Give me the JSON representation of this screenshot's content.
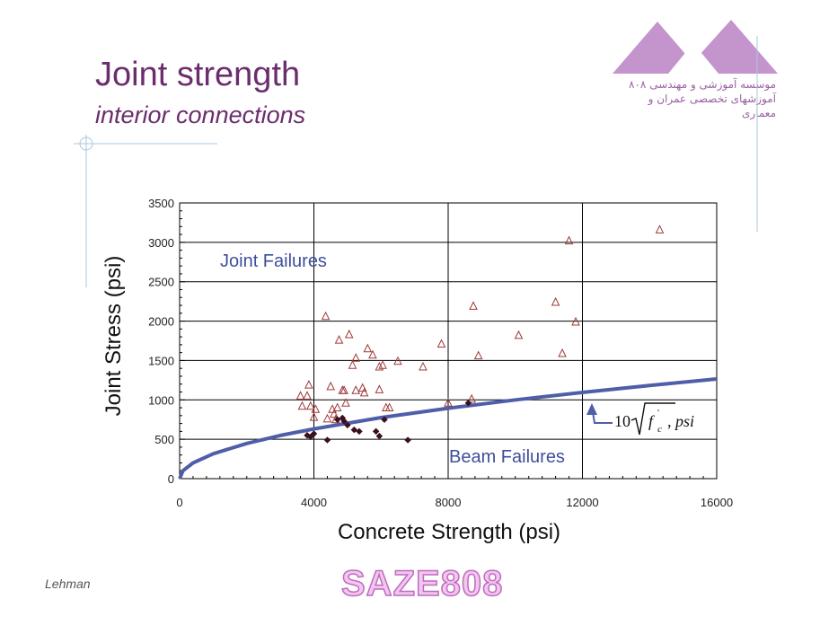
{
  "slide": {
    "title": "Joint strength",
    "subtitle": "interior connections",
    "author": "Lehman",
    "watermark": "SAZE808",
    "logo_lines": [
      "موسسه آموزشی و مهندسی ۸۰۸",
      "آموزشهای تخصصی عمران و معماری"
    ]
  },
  "colors": {
    "title": "#6b2d6e",
    "curve": "#4f5ea8",
    "joint_marker": "#9e3a3a",
    "beam_marker": "#3a1020",
    "logo": "#b07ab8"
  },
  "chart_data": {
    "type": "scatter",
    "xlabel": "Concrete Strength (psi)",
    "ylabel": "Joint Stress (psi)",
    "xlim": [
      0,
      16000
    ],
    "ylim": [
      0,
      3500
    ],
    "x_ticks": [
      0,
      4000,
      8000,
      12000,
      16000
    ],
    "y_ticks": [
      0,
      500,
      1000,
      1500,
      2000,
      2500,
      3000,
      3500
    ],
    "grid": true,
    "annotations": {
      "joint_failures": "Joint Failures",
      "beam_failures": "Beam Failures",
      "curve_label": {
        "coef": "10",
        "fc": "f",
        "sub": "c",
        "prime": "'",
        "unit": ", psi"
      }
    },
    "series": [
      {
        "marker": "open-triangle",
        "points": [
          [
            3600,
            1050
          ],
          [
            3650,
            920
          ],
          [
            3800,
            1050
          ],
          [
            3850,
            1190
          ],
          [
            3900,
            920
          ],
          [
            4000,
            780
          ],
          [
            4050,
            880
          ],
          [
            4350,
            2060
          ],
          [
            4400,
            760
          ],
          [
            4500,
            1170
          ],
          [
            4550,
            880
          ],
          [
            4600,
            820
          ],
          [
            4650,
            750
          ],
          [
            4700,
            900
          ],
          [
            4750,
            1760
          ],
          [
            4850,
            1120
          ],
          [
            4900,
            1120
          ],
          [
            4950,
            960
          ],
          [
            5050,
            1830
          ],
          [
            5150,
            1440
          ],
          [
            5250,
            1530
          ],
          [
            5250,
            1120
          ],
          [
            5450,
            1150
          ],
          [
            5500,
            1090
          ],
          [
            5600,
            1650
          ],
          [
            5750,
            1570
          ],
          [
            5950,
            1130
          ],
          [
            5950,
            1420
          ],
          [
            6050,
            1440
          ],
          [
            6150,
            900
          ],
          [
            6250,
            900
          ],
          [
            6500,
            1490
          ],
          [
            7250,
            1420
          ],
          [
            7800,
            1710
          ],
          [
            8000,
            960
          ],
          [
            8700,
            1010
          ],
          [
            8750,
            2190
          ],
          [
            8900,
            1560
          ],
          [
            10100,
            1820
          ],
          [
            11200,
            2240
          ],
          [
            11400,
            1590
          ],
          [
            11600,
            3020
          ],
          [
            11800,
            1990
          ],
          [
            14300,
            3160
          ]
        ]
      },
      {
        "marker": "filled-diamond",
        "points": [
          [
            3800,
            550
          ],
          [
            3900,
            530
          ],
          [
            4000,
            570
          ],
          [
            4400,
            490
          ],
          [
            4700,
            750
          ],
          [
            4850,
            770
          ],
          [
            4900,
            730
          ],
          [
            5000,
            680
          ],
          [
            5200,
            620
          ],
          [
            5350,
            600
          ],
          [
            5850,
            600
          ],
          [
            5950,
            540
          ],
          [
            6100,
            750
          ],
          [
            6800,
            490
          ],
          [
            8600,
            960
          ]
        ]
      },
      {
        "marker": "line",
        "formula": "10*sqrt(x)",
        "x": [
          0,
          100,
          400,
          1000,
          2000,
          3000,
          4000,
          6000,
          8000,
          10000,
          12000,
          14000,
          16000
        ],
        "y": [
          0,
          100,
          200,
          316,
          447,
          548,
          632,
          775,
          894,
          1000,
          1095,
          1183,
          1265
        ]
      }
    ]
  }
}
